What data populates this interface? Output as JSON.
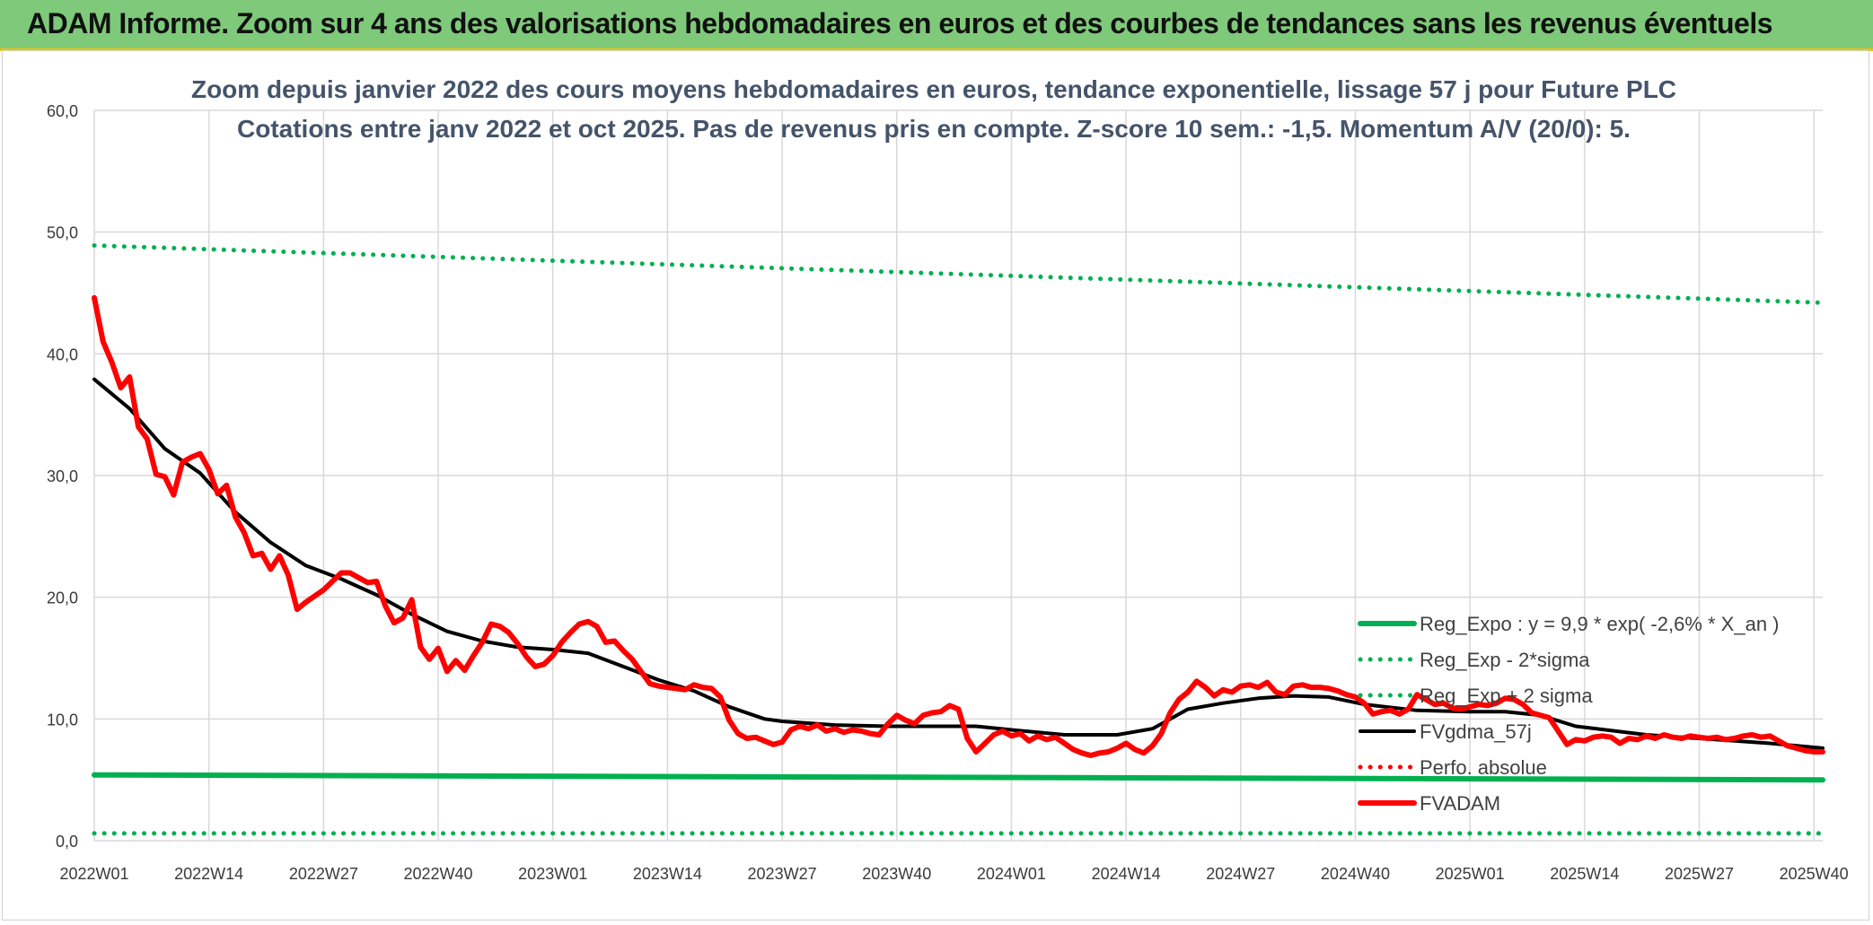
{
  "banner": {
    "title": "ADAM Informe. Zoom sur 4 ans des valorisations hebdomadaires en euros et des courbes de tendances sans les revenus éventuels"
  },
  "colors": {
    "banner_bg": "#7fc97a",
    "reg_expo": "#00b050",
    "red": "#ff0000",
    "black": "#000000",
    "grid": "#d9d9d9"
  },
  "chart_data": {
    "type": "line",
    "title_line1": "Zoom depuis janvier 2022 des cours moyens hebdomadaires en euros, tendance exponentielle, lissage 57 j pour Future PLC",
    "title_line2": "Cotations entre janv 2022 et oct 2025. Pas de revenus pris en compte. Z-score 10 sem.: -1,5. Momentum A/V (20/0): 5.",
    "ylim": [
      0,
      60
    ],
    "y_ticks": [
      "0,0",
      "10,0",
      "20,0",
      "30,0",
      "40,0",
      "50,0",
      "60,0"
    ],
    "x_ticks": [
      "2022W01",
      "2022W14",
      "2022W27",
      "2022W40",
      "2023W01",
      "2023W14",
      "2023W27",
      "2023W40",
      "2024W01",
      "2024W14",
      "2024W27",
      "2024W40",
      "2025W01",
      "2025W14",
      "2025W27",
      "2025W40"
    ],
    "x_tick_index": [
      0,
      13,
      26,
      39,
      52,
      65,
      78,
      91,
      104,
      117,
      130,
      143,
      156,
      169,
      182,
      195
    ],
    "n_weeks": 197,
    "legend_position": "right-bottom",
    "grid": true,
    "series": [
      {
        "name": "Reg_Expo : y = 9,9 * exp( -2,6% *  X_an )",
        "style": "solid-green",
        "points": [
          [
            0,
            5.4
          ],
          [
            196,
            5.0
          ]
        ]
      },
      {
        "name": "Reg_Exp - 2*sigma",
        "style": "dotted-green",
        "points": [
          [
            0,
            0.6
          ],
          [
            196,
            0.6
          ]
        ]
      },
      {
        "name": "Reg_Exp + 2 sigma",
        "style": "dotted-green",
        "points": [
          [
            0,
            48.9
          ],
          [
            196,
            44.2
          ]
        ]
      },
      {
        "name": "FVgdma_57j",
        "style": "solid-black",
        "points": [
          [
            0,
            37.9
          ],
          [
            4,
            35.5
          ],
          [
            8,
            32.2
          ],
          [
            12,
            30.2
          ],
          [
            16,
            27.0
          ],
          [
            20,
            24.5
          ],
          [
            24,
            22.6
          ],
          [
            28,
            21.5
          ],
          [
            32,
            20.2
          ],
          [
            36,
            18.6
          ],
          [
            40,
            17.2
          ],
          [
            44,
            16.4
          ],
          [
            48,
            15.9
          ],
          [
            52,
            15.7
          ],
          [
            56,
            15.4
          ],
          [
            60,
            14.3
          ],
          [
            64,
            13.2
          ],
          [
            68,
            12.3
          ],
          [
            72,
            11.0
          ],
          [
            76,
            10.0
          ],
          [
            78,
            9.8
          ],
          [
            84,
            9.5
          ],
          [
            90,
            9.4
          ],
          [
            100,
            9.4
          ],
          [
            104,
            9.1
          ],
          [
            110,
            8.7
          ],
          [
            116,
            8.7
          ],
          [
            120,
            9.2
          ],
          [
            124,
            10.8
          ],
          [
            128,
            11.3
          ],
          [
            132,
            11.7
          ],
          [
            136,
            11.9
          ],
          [
            140,
            11.8
          ],
          [
            144,
            11.2
          ],
          [
            150,
            10.7
          ],
          [
            156,
            10.6
          ],
          [
            160,
            10.6
          ],
          [
            164,
            10.3
          ],
          [
            168,
            9.4
          ],
          [
            176,
            8.7
          ],
          [
            184,
            8.3
          ],
          [
            190,
            8.0
          ],
          [
            196,
            7.6
          ]
        ]
      },
      {
        "name": "Perfo. absolue",
        "style": "dotted-red",
        "points": []
      },
      {
        "name": "FVADAM",
        "style": "solid-red",
        "points": [
          [
            0,
            44.6
          ],
          [
            1,
            41.0
          ],
          [
            2,
            39.3
          ],
          [
            3,
            37.2
          ],
          [
            4,
            38.1
          ],
          [
            5,
            34.0
          ],
          [
            6,
            33.0
          ],
          [
            7,
            30.1
          ],
          [
            8,
            29.9
          ],
          [
            9,
            28.4
          ],
          [
            10,
            31.1
          ],
          [
            11,
            31.5
          ],
          [
            12,
            31.8
          ],
          [
            13,
            30.5
          ],
          [
            14,
            28.5
          ],
          [
            15,
            29.2
          ],
          [
            16,
            26.6
          ],
          [
            17,
            25.3
          ],
          [
            18,
            23.4
          ],
          [
            19,
            23.6
          ],
          [
            20,
            22.3
          ],
          [
            21,
            23.4
          ],
          [
            22,
            21.8
          ],
          [
            23,
            19.0
          ],
          [
            24,
            19.6
          ],
          [
            25,
            20.1
          ],
          [
            26,
            20.6
          ],
          [
            27,
            21.3
          ],
          [
            28,
            22.0
          ],
          [
            29,
            22.0
          ],
          [
            30,
            21.6
          ],
          [
            31,
            21.2
          ],
          [
            32,
            21.3
          ],
          [
            33,
            19.3
          ],
          [
            34,
            17.9
          ],
          [
            35,
            18.3
          ],
          [
            36,
            19.8
          ],
          [
            37,
            15.9
          ],
          [
            38,
            14.9
          ],
          [
            39,
            15.8
          ],
          [
            40,
            13.9
          ],
          [
            41,
            14.8
          ],
          [
            42,
            14.0
          ],
          [
            43,
            15.2
          ],
          [
            44,
            16.3
          ],
          [
            45,
            17.8
          ],
          [
            46,
            17.6
          ],
          [
            47,
            17.1
          ],
          [
            48,
            16.2
          ],
          [
            49,
            15.1
          ],
          [
            50,
            14.3
          ],
          [
            51,
            14.5
          ],
          [
            52,
            15.2
          ],
          [
            53,
            16.3
          ],
          [
            54,
            17.1
          ],
          [
            55,
            17.8
          ],
          [
            56,
            18.0
          ],
          [
            57,
            17.6
          ],
          [
            58,
            16.3
          ],
          [
            59,
            16.4
          ],
          [
            60,
            15.6
          ],
          [
            61,
            14.9
          ],
          [
            62,
            13.9
          ],
          [
            63,
            12.9
          ],
          [
            64,
            12.7
          ],
          [
            65,
            12.6
          ],
          [
            66,
            12.5
          ],
          [
            67,
            12.4
          ],
          [
            68,
            12.8
          ],
          [
            69,
            12.6
          ],
          [
            70,
            12.5
          ],
          [
            71,
            11.8
          ],
          [
            72,
            9.9
          ],
          [
            73,
            8.8
          ],
          [
            74,
            8.4
          ],
          [
            75,
            8.5
          ],
          [
            76,
            8.2
          ],
          [
            77,
            7.9
          ],
          [
            78,
            8.1
          ],
          [
            79,
            9.1
          ],
          [
            80,
            9.4
          ],
          [
            81,
            9.2
          ],
          [
            82,
            9.5
          ],
          [
            83,
            9.0
          ],
          [
            84,
            9.2
          ],
          [
            85,
            8.9
          ],
          [
            86,
            9.1
          ],
          [
            87,
            9.0
          ],
          [
            88,
            8.8
          ],
          [
            89,
            8.7
          ],
          [
            90,
            9.6
          ],
          [
            91,
            10.3
          ],
          [
            92,
            9.9
          ],
          [
            93,
            9.6
          ],
          [
            94,
            10.3
          ],
          [
            95,
            10.5
          ],
          [
            96,
            10.6
          ],
          [
            97,
            11.1
          ],
          [
            98,
            10.8
          ],
          [
            99,
            8.4
          ],
          [
            100,
            7.3
          ],
          [
            101,
            8.0
          ],
          [
            102,
            8.7
          ],
          [
            103,
            9.0
          ],
          [
            104,
            8.6
          ],
          [
            105,
            8.8
          ],
          [
            106,
            8.2
          ],
          [
            107,
            8.6
          ],
          [
            108,
            8.3
          ],
          [
            109,
            8.5
          ],
          [
            110,
            8.0
          ],
          [
            111,
            7.5
          ],
          [
            112,
            7.2
          ],
          [
            113,
            7.0
          ],
          [
            114,
            7.2
          ],
          [
            115,
            7.3
          ],
          [
            116,
            7.6
          ],
          [
            117,
            8.0
          ],
          [
            118,
            7.5
          ],
          [
            119,
            7.2
          ],
          [
            120,
            7.8
          ],
          [
            121,
            8.8
          ],
          [
            122,
            10.5
          ],
          [
            123,
            11.6
          ],
          [
            124,
            12.2
          ],
          [
            125,
            13.1
          ],
          [
            126,
            12.6
          ],
          [
            127,
            11.9
          ],
          [
            128,
            12.4
          ],
          [
            129,
            12.2
          ],
          [
            130,
            12.7
          ],
          [
            131,
            12.8
          ],
          [
            132,
            12.6
          ],
          [
            133,
            13.0
          ],
          [
            134,
            12.2
          ],
          [
            135,
            12.0
          ],
          [
            136,
            12.7
          ],
          [
            137,
            12.8
          ],
          [
            138,
            12.6
          ],
          [
            139,
            12.6
          ],
          [
            140,
            12.5
          ],
          [
            141,
            12.3
          ],
          [
            142,
            12.0
          ],
          [
            143,
            11.8
          ],
          [
            144,
            11.3
          ],
          [
            145,
            10.4
          ],
          [
            146,
            10.6
          ],
          [
            147,
            10.7
          ],
          [
            148,
            10.4
          ],
          [
            149,
            10.8
          ],
          [
            150,
            12.0
          ],
          [
            151,
            11.6
          ],
          [
            152,
            11.2
          ],
          [
            153,
            11.3
          ],
          [
            154,
            10.9
          ],
          [
            155,
            10.8
          ],
          [
            156,
            11.0
          ],
          [
            157,
            11.2
          ],
          [
            158,
            11.1
          ],
          [
            159,
            11.3
          ],
          [
            160,
            11.7
          ],
          [
            161,
            11.6
          ],
          [
            162,
            11.2
          ],
          [
            163,
            10.5
          ],
          [
            164,
            10.3
          ],
          [
            165,
            10.1
          ],
          [
            166,
            9.0
          ],
          [
            167,
            7.9
          ],
          [
            168,
            8.3
          ],
          [
            169,
            8.2
          ],
          [
            170,
            8.5
          ],
          [
            171,
            8.6
          ],
          [
            172,
            8.5
          ],
          [
            173,
            8.0
          ],
          [
            174,
            8.4
          ],
          [
            175,
            8.3
          ],
          [
            176,
            8.6
          ],
          [
            177,
            8.4
          ],
          [
            178,
            8.7
          ],
          [
            179,
            8.5
          ],
          [
            180,
            8.4
          ],
          [
            181,
            8.6
          ],
          [
            182,
            8.5
          ],
          [
            183,
            8.4
          ],
          [
            184,
            8.5
          ],
          [
            185,
            8.3
          ],
          [
            186,
            8.4
          ],
          [
            187,
            8.6
          ],
          [
            188,
            8.7
          ],
          [
            189,
            8.5
          ],
          [
            190,
            8.6
          ],
          [
            191,
            8.2
          ],
          [
            192,
            7.8
          ],
          [
            193,
            7.6
          ],
          [
            194,
            7.4
          ],
          [
            195,
            7.3
          ],
          [
            196,
            7.3
          ]
        ]
      }
    ]
  }
}
